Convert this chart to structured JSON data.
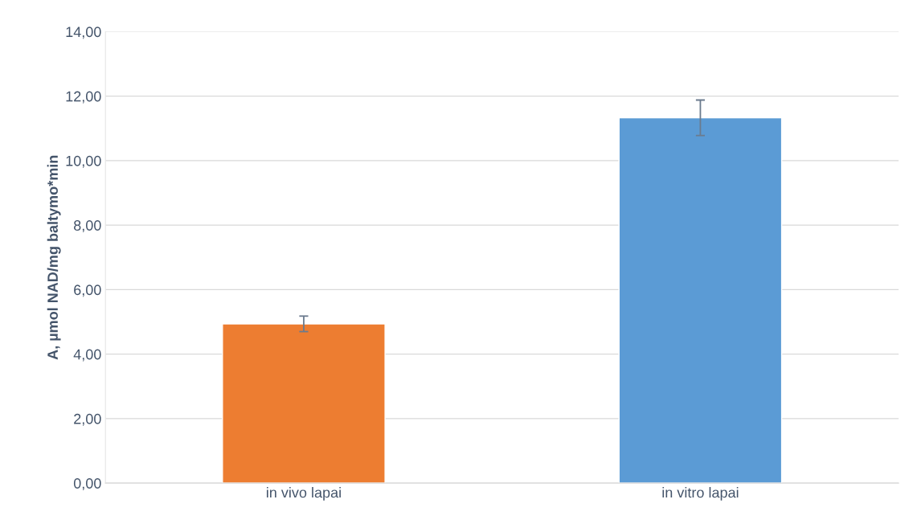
{
  "chart_data": {
    "type": "bar",
    "ylabel": "A, µmol NAD/mg baltymo*min",
    "categories": [
      "in vivo lapai",
      "in vitro lapai"
    ],
    "values": [
      4.94,
      11.33
    ],
    "colors": [
      "#ed7d31",
      "#5b9bd5"
    ],
    "errors": [
      0.24,
      0.55
    ],
    "ylim": [
      0,
      14
    ],
    "yticks": [
      {
        "value": 0,
        "label": "0,00"
      },
      {
        "value": 2,
        "label": "2,00"
      },
      {
        "value": 4,
        "label": "4,00"
      },
      {
        "value": 6,
        "label": "6,00"
      },
      {
        "value": 8,
        "label": "8,00"
      },
      {
        "value": 10,
        "label": "10,00"
      },
      {
        "value": 12,
        "label": "12,00"
      },
      {
        "value": 14,
        "label": "14,00"
      }
    ],
    "grid": "y"
  }
}
